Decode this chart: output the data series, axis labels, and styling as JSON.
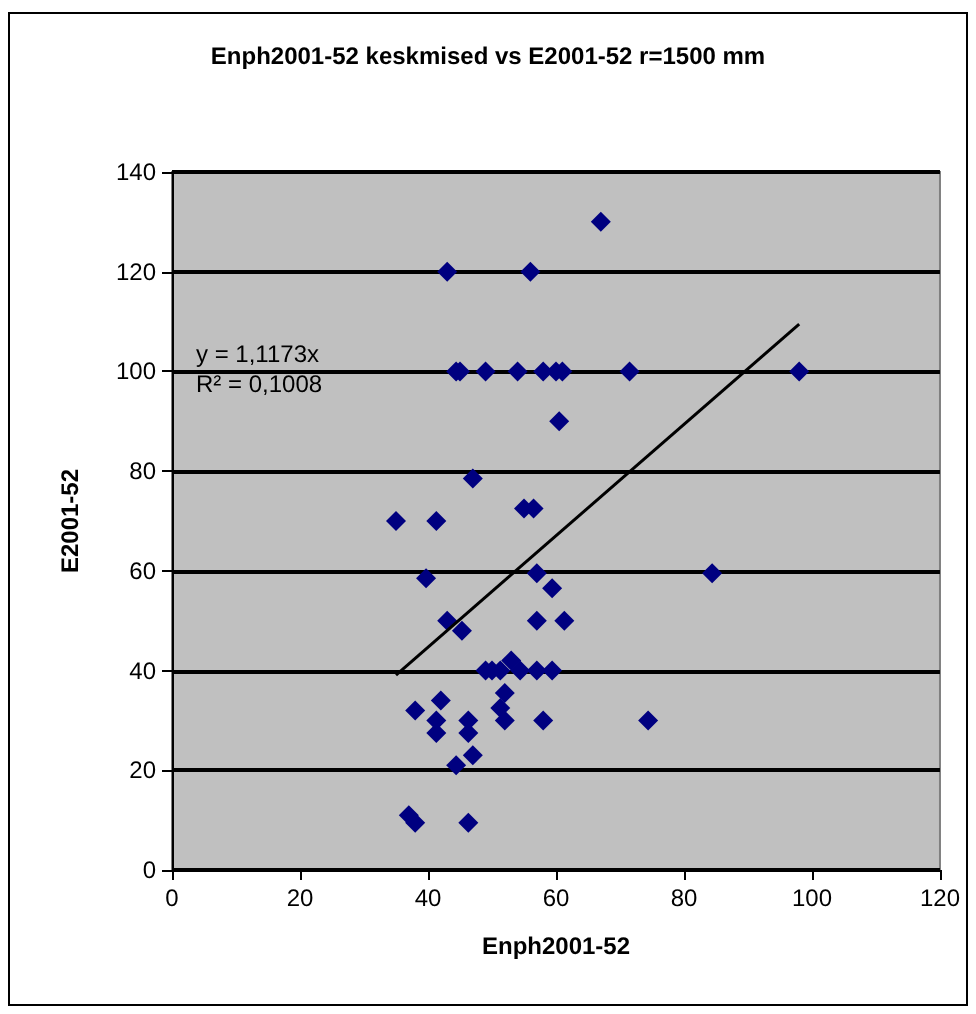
{
  "chart_data": {
    "type": "scatter",
    "title": "Enph2001-52 keskmised vs E2001-52 r=1500 mm",
    "xlabel": "Enph2001-52",
    "ylabel": "E2001-52",
    "xlim": [
      0,
      120
    ],
    "xticks": [
      0,
      20,
      40,
      60,
      80,
      100,
      120
    ],
    "ylim": [
      0,
      140
    ],
    "yticks": [
      0,
      20,
      40,
      60,
      80,
      100,
      120,
      140
    ],
    "grid": "y",
    "marker": "diamond",
    "annotations": [
      "y = 1,1173x",
      "R² = 0,1008"
    ],
    "series": [
      {
        "color": "#000080",
        "x": [
          44.4,
          45,
          49,
          54,
          58,
          60,
          61,
          71.5,
          98,
          43,
          56,
          67,
          60.5,
          47,
          55,
          56.5,
          35,
          41.3,
          39.7,
          57,
          59.4,
          84.4,
          43,
          45.3,
          57,
          61.3,
          49,
          50,
          51.3,
          53,
          54.4,
          57,
          59.4,
          38,
          42,
          41.3,
          41.3,
          46.3,
          46.3,
          47,
          44.4,
          52,
          51.3,
          52,
          58,
          37,
          38,
          46.3,
          74.4
        ],
        "values": [
          100,
          100,
          100,
          100,
          100,
          100,
          100,
          100,
          100,
          120,
          120,
          130,
          90,
          78.5,
          72.5,
          72.5,
          70,
          70,
          58.5,
          59.5,
          56.5,
          59.5,
          50,
          48,
          50,
          50,
          40,
          40,
          40,
          42,
          40,
          40,
          40,
          32,
          34,
          30,
          27.5,
          30,
          27.5,
          23,
          21,
          35.5,
          32.5,
          30,
          30,
          11,
          9.5,
          9.5,
          30
        ]
      },
      {
        "type": "line",
        "color": "#000000",
        "marker": "none",
        "x": [
          35,
          98
        ],
        "values": [
          39.1,
          109.5
        ]
      }
    ]
  }
}
